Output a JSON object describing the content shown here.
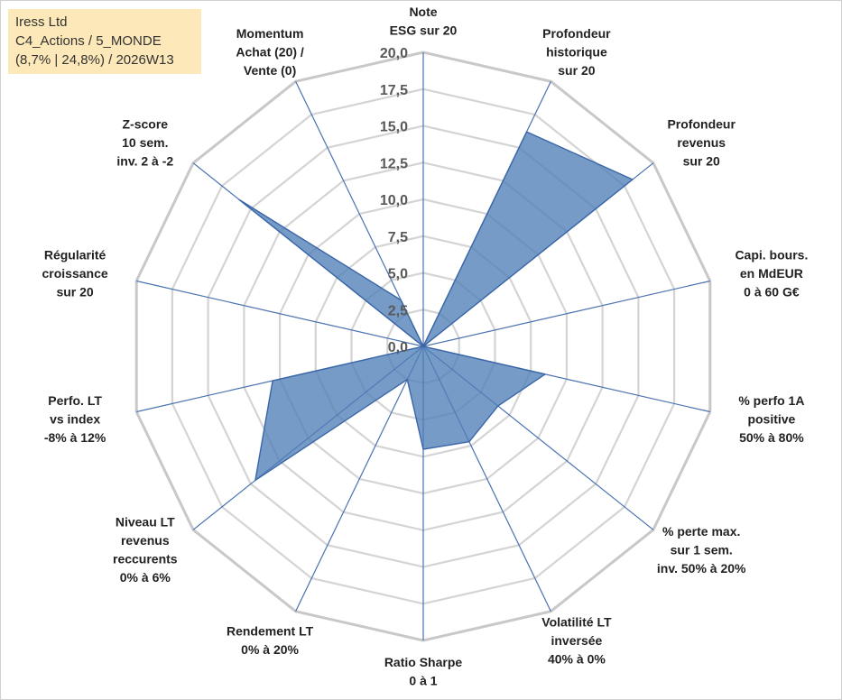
{
  "info": {
    "company": "Iress Ltd",
    "category": "C4_Actions / 5_MONDE",
    "stats": "(8,7% | 24,8%) / 2026W13"
  },
  "chart_data": {
    "type": "radar",
    "title": "",
    "range": [
      0,
      20
    ],
    "ticks": [
      "0,0",
      "2,5",
      "5,0",
      "7,5",
      "10,0",
      "12,5",
      "15,0",
      "17,5",
      "20,0"
    ],
    "gridlines": true,
    "axes": [
      [
        "Note",
        "ESG sur 20"
      ],
      [
        "Profondeur",
        "historique",
        "sur 20"
      ],
      [
        "Profondeur",
        "revenus",
        "sur 20"
      ],
      [
        "Capi. bours.",
        "en MdEUR",
        "0 à 60 G€"
      ],
      [
        "% perfo 1A",
        "positive",
        "50% à 80%"
      ],
      [
        "% perte max.",
        "sur 1 sem.",
        "inv. 50% à 20%"
      ],
      [
        "Volatilité LT",
        "inversée",
        "40% à 0%"
      ],
      [
        "Ratio Sharpe",
        "0 à 1"
      ],
      [
        "Rendement LT",
        "0% à 20%"
      ],
      [
        "Niveau LT",
        "revenus",
        "reccurents",
        "0% à 6%"
      ],
      [
        "Perfo. LT",
        "vs index",
        "-8% à 12%"
      ],
      [
        "Régularité",
        "croissance",
        "sur 20"
      ],
      [
        "Z-score",
        "10 sem.",
        "inv. 2 à -2"
      ],
      [
        "Momentum",
        "Achat (20) /",
        "Vente (0)"
      ]
    ],
    "series": [
      {
        "name": "Iress Ltd",
        "color": "#4f7fb7",
        "values": [
          0,
          16.2,
          18.2,
          0,
          8.5,
          6.5,
          7.2,
          7.0,
          2.5,
          14.6,
          10.5,
          0,
          16.0,
          3.5
        ]
      }
    ]
  }
}
